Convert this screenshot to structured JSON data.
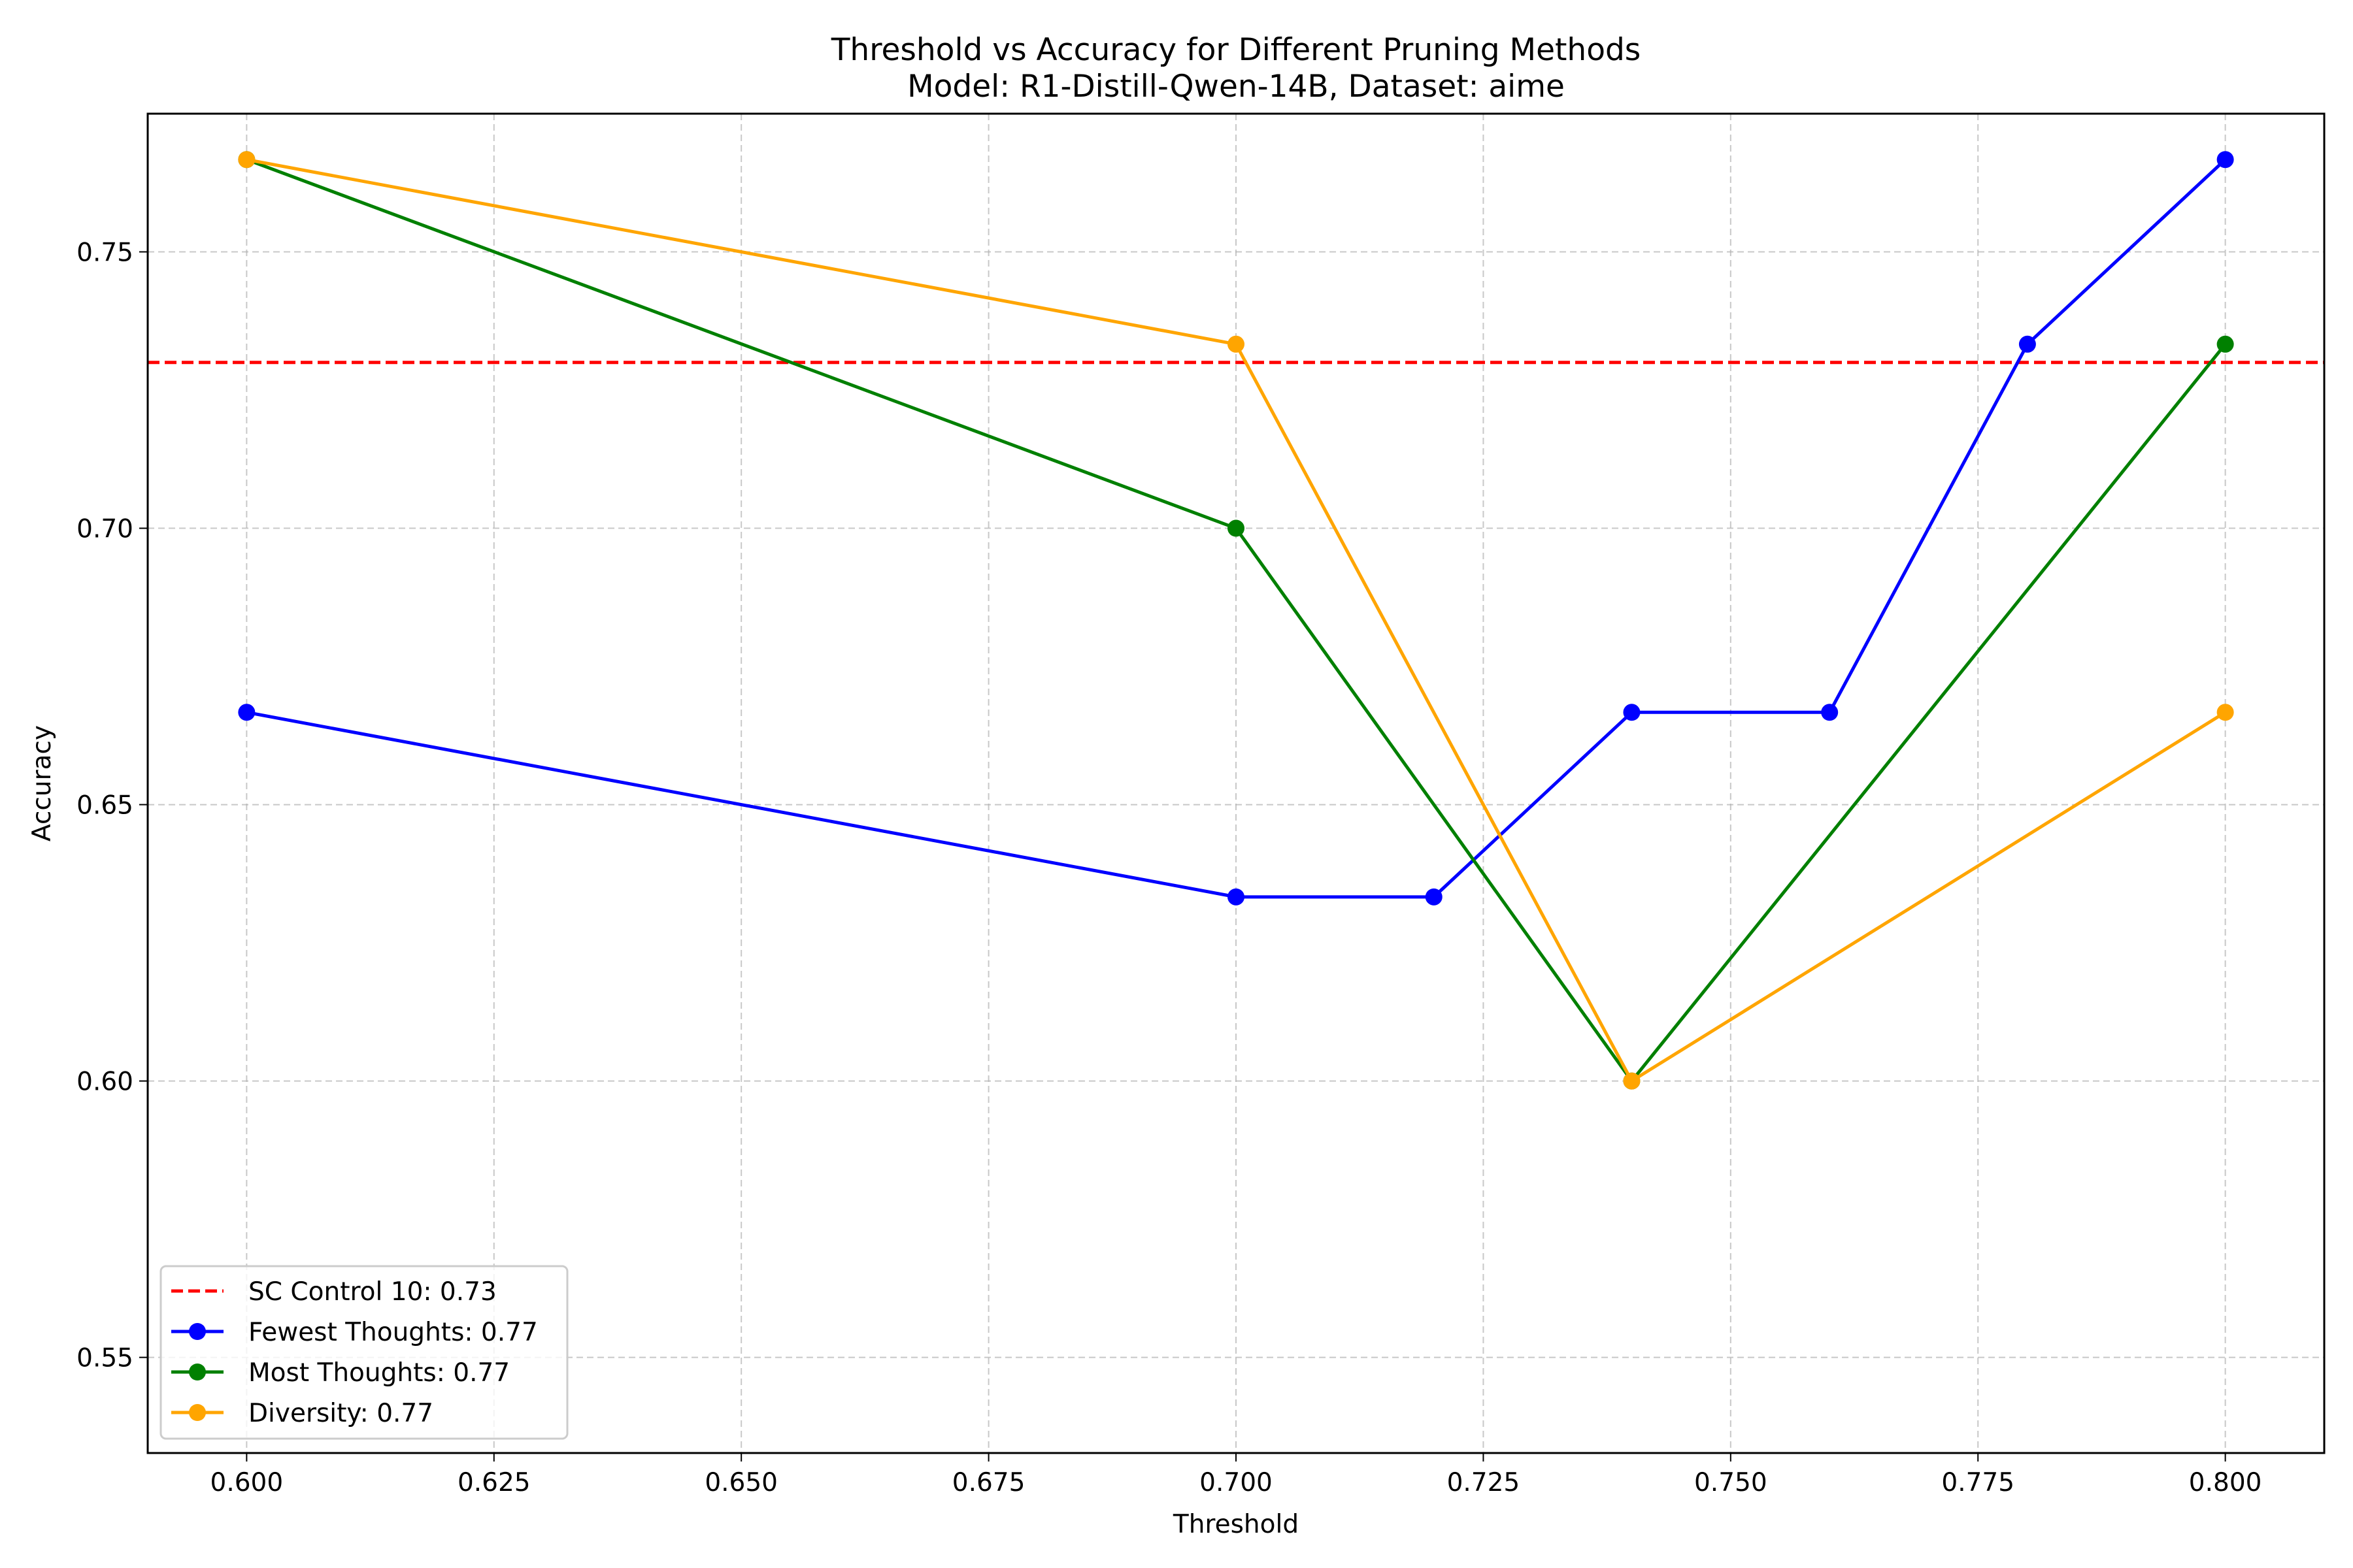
{
  "chart_data": {
    "type": "line",
    "title": "Threshold vs Accuracy for Different Pruning Methods",
    "subtitle": "Model: R1-Distill-Qwen-14B, Dataset: aime",
    "xlabel": "Threshold",
    "ylabel": "Accuracy",
    "xlim": [
      0.59,
      0.81
    ],
    "ylim": [
      0.5327,
      0.775
    ],
    "xticks": [
      0.6,
      0.625,
      0.65,
      0.675,
      0.7,
      0.725,
      0.75,
      0.775,
      0.8
    ],
    "xtick_labels": [
      "0.600",
      "0.625",
      "0.650",
      "0.675",
      "0.700",
      "0.725",
      "0.750",
      "0.775",
      "0.800"
    ],
    "yticks": [
      0.55,
      0.6,
      0.65,
      0.7,
      0.75
    ],
    "ytick_labels": [
      "0.55",
      "0.60",
      "0.65",
      "0.70",
      "0.75"
    ],
    "grid": true,
    "legend_position": "lower-left",
    "reference_line": {
      "name": "SC Control 10: 0.73",
      "y": 0.73,
      "color": "#ff0000",
      "style": "dashed"
    },
    "series": [
      {
        "name": "Fewest Thoughts: 0.77",
        "color": "#0000ff",
        "x": [
          0.6,
          0.7,
          0.72,
          0.74,
          0.76,
          0.78,
          0.8
        ],
        "y": [
          0.6667,
          0.6333,
          0.6333,
          0.6667,
          0.6667,
          0.7333,
          0.7667
        ]
      },
      {
        "name": "Most Thoughts: 0.77",
        "color": "#008000",
        "x": [
          0.6,
          0.7,
          0.74,
          0.8
        ],
        "y": [
          0.7667,
          0.7,
          0.6,
          0.7333
        ]
      },
      {
        "name": "Diversity: 0.77",
        "color": "#ffa500",
        "x": [
          0.6,
          0.7,
          0.74,
          0.8
        ],
        "y": [
          0.7667,
          0.7333,
          0.6,
          0.6667
        ]
      }
    ]
  }
}
